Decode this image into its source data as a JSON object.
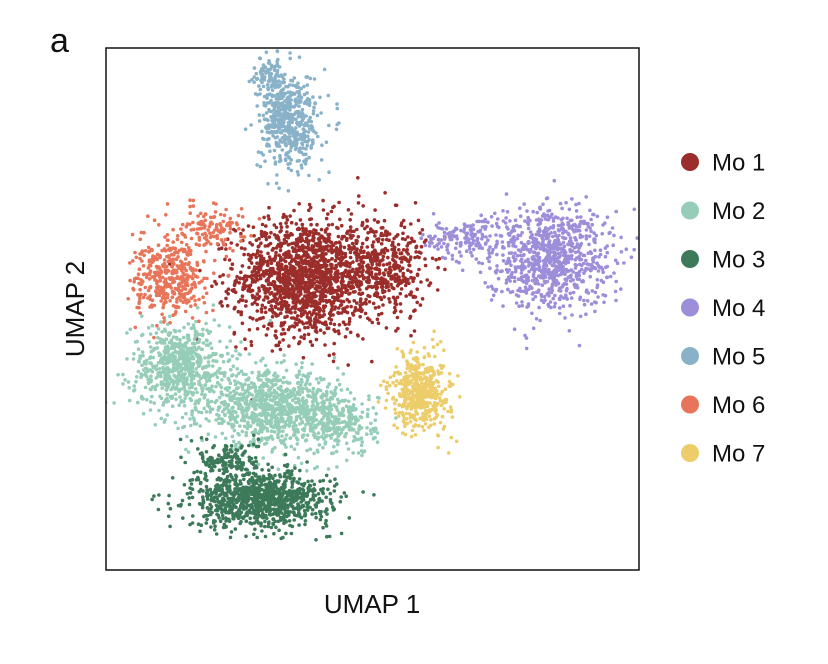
{
  "panel_label": "a",
  "chart_data": {
    "type": "scatter",
    "title": "",
    "xlabel": "UMAP 1",
    "ylabel": "UMAP 2",
    "xlim": [
      0,
      10
    ],
    "ylim": [
      0,
      10
    ],
    "grid": false,
    "axis_ticks": false,
    "legend_position": "right",
    "marker": "dot",
    "series": [
      {
        "name": "Mo 1",
        "color": "#9B2E2B",
        "clusters": [
          {
            "cx": 3.7,
            "cy": 5.6,
            "sx": 1.0,
            "sy": 0.9,
            "n": 1500
          },
          {
            "cx": 5.2,
            "cy": 5.8,
            "sx": 0.65,
            "sy": 0.8,
            "n": 450
          }
        ]
      },
      {
        "name": "Mo 2",
        "color": "#96CDB8",
        "clusters": [
          {
            "cx": 1.4,
            "cy": 3.9,
            "sx": 0.75,
            "sy": 0.65,
            "n": 650
          },
          {
            "cx": 3.1,
            "cy": 3.1,
            "sx": 1.05,
            "sy": 0.55,
            "n": 900
          },
          {
            "cx": 4.4,
            "cy": 2.8,
            "sx": 0.55,
            "sy": 0.5,
            "n": 250
          }
        ]
      },
      {
        "name": "Mo 3",
        "color": "#3C7A5A",
        "clusters": [
          {
            "cx": 2.9,
            "cy": 1.35,
            "sx": 1.05,
            "sy": 0.42,
            "n": 1000
          },
          {
            "cx": 2.3,
            "cy": 2.1,
            "sx": 0.45,
            "sy": 0.3,
            "n": 150
          }
        ]
      },
      {
        "name": "Mo 4",
        "color": "#9D8ED9",
        "clusters": [
          {
            "cx": 8.3,
            "cy": 6.0,
            "sx": 0.95,
            "sy": 0.8,
            "n": 900
          },
          {
            "cx": 6.6,
            "cy": 6.35,
            "sx": 0.5,
            "sy": 0.3,
            "n": 120
          }
        ]
      },
      {
        "name": "Mo 5",
        "color": "#89B2C9",
        "clusters": [
          {
            "cx": 3.45,
            "cy": 8.6,
            "sx": 0.45,
            "sy": 0.75,
            "n": 520
          },
          {
            "cx": 3.05,
            "cy": 9.5,
            "sx": 0.22,
            "sy": 0.25,
            "n": 80
          }
        ]
      },
      {
        "name": "Mo 6",
        "color": "#E8745A",
        "clusters": [
          {
            "cx": 1.2,
            "cy": 5.6,
            "sx": 0.55,
            "sy": 0.6,
            "n": 400
          },
          {
            "cx": 2.0,
            "cy": 6.6,
            "sx": 0.5,
            "sy": 0.35,
            "n": 120
          }
        ]
      },
      {
        "name": "Mo 7",
        "color": "#EDCC6A",
        "clusters": [
          {
            "cx": 5.9,
            "cy": 3.4,
            "sx": 0.45,
            "sy": 0.6,
            "n": 450
          }
        ]
      }
    ]
  }
}
